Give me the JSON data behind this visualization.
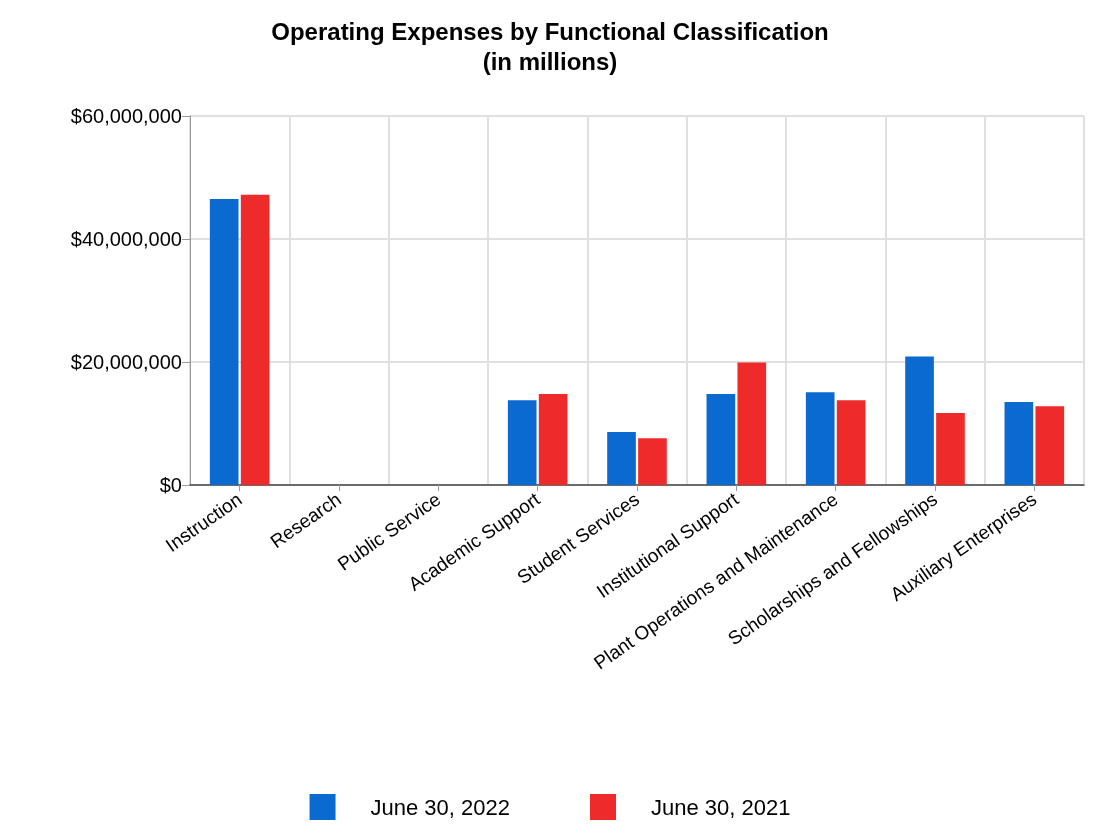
{
  "chart_data": {
    "type": "bar",
    "title": "Operating Expenses by Functional Classification",
    "subtitle": "(in millions)",
    "categories": [
      "Instruction",
      "Research",
      "Public Service",
      "Academic Support",
      "Student Services",
      "Institutional Support",
      "Plant Operations and Maintenance",
      "Scholarships and Fellowships",
      "Auxiliary Enterprises"
    ],
    "series": [
      {
        "name": "June 30, 2022",
        "color": "#0a6ad0",
        "values": [
          46500000,
          0,
          0,
          13800000,
          8600000,
          14800000,
          15100000,
          20900000,
          13500000
        ]
      },
      {
        "name": "June 30, 2021",
        "color": "#ee2a2a",
        "values": [
          47200000,
          0,
          0,
          14800000,
          7600000,
          19900000,
          13800000,
          11700000,
          12800000
        ]
      }
    ],
    "ylim": [
      0,
      60000000
    ],
    "yticks": [
      {
        "value": 0,
        "label": "$0"
      },
      {
        "value": 20000000,
        "label": "$20,000,000"
      },
      {
        "value": 40000000,
        "label": "$40,000,000"
      },
      {
        "value": 60000000,
        "label": "$60,000,000"
      }
    ],
    "grid": true,
    "legend": "bottom"
  }
}
